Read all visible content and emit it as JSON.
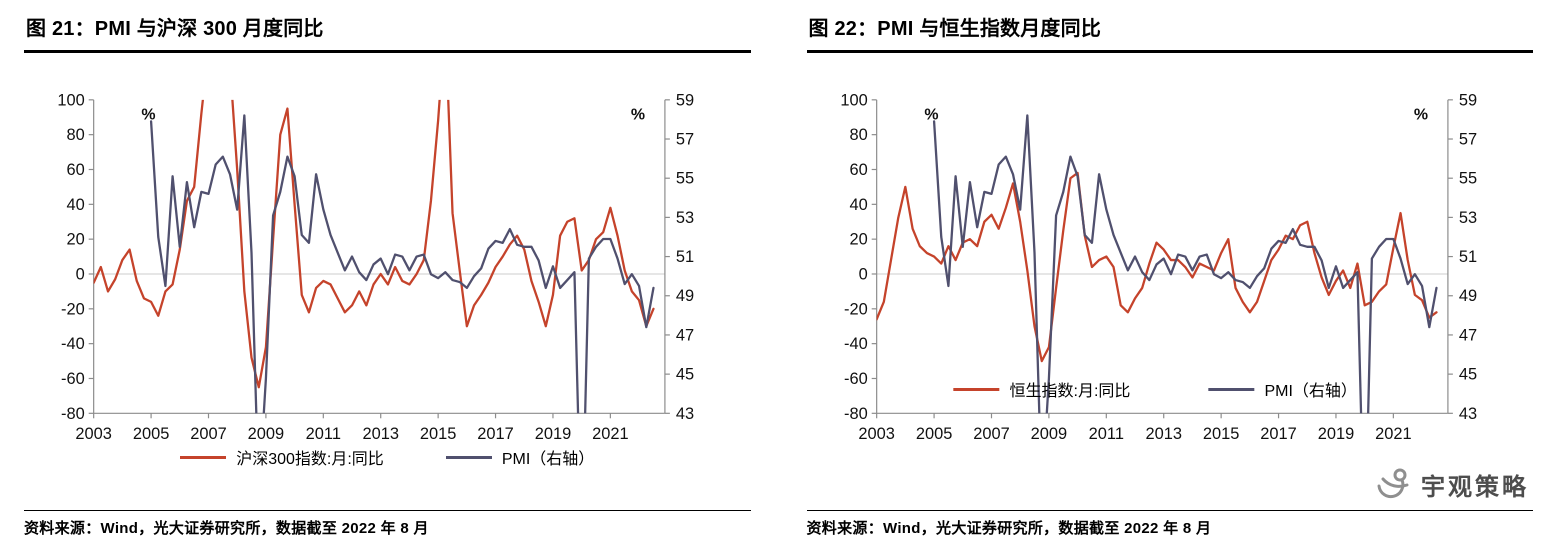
{
  "page": {
    "source_left": "资料来源：Wind，光大证券研究所，数据截至 2022 年 8 月",
    "source_right": "资料来源：Wind，光大证券研究所，数据截至 2022 年 8 月",
    "logo_text": "宇观策略"
  },
  "chart_data": [
    {
      "type": "line",
      "title": "图 21：PMI 与沪深 300 月度同比",
      "left_axis": {
        "unit": "%",
        "min": -80,
        "max": 100,
        "ticks": [
          100,
          80,
          60,
          40,
          20,
          0,
          -20,
          -40,
          -60,
          -80
        ]
      },
      "right_axis": {
        "unit": "%",
        "min": 43,
        "max": 59,
        "ticks": [
          59,
          57,
          55,
          53,
          51,
          49,
          47,
          45,
          43
        ]
      },
      "x_axis": {
        "min": 2003,
        "max": 2022.9,
        "ticks": [
          2003,
          2005,
          2007,
          2009,
          2011,
          2013,
          2015,
          2017,
          2019,
          2021
        ]
      },
      "x": [
        2003,
        2003.25,
        2003.5,
        2003.75,
        2004,
        2004.25,
        2004.5,
        2004.75,
        2005,
        2005.25,
        2005.5,
        2005.75,
        2006,
        2006.25,
        2006.5,
        2006.75,
        2007,
        2007.25,
        2007.5,
        2007.75,
        2008,
        2008.25,
        2008.5,
        2008.75,
        2009,
        2009.25,
        2009.5,
        2009.75,
        2010,
        2010.25,
        2010.5,
        2010.75,
        2011,
        2011.25,
        2011.5,
        2011.75,
        2012,
        2012.25,
        2012.5,
        2012.75,
        2013,
        2013.25,
        2013.5,
        2013.75,
        2014,
        2014.25,
        2014.5,
        2014.75,
        2015,
        2015.25,
        2015.5,
        2015.75,
        2016,
        2016.25,
        2016.5,
        2016.75,
        2017,
        2017.25,
        2017.5,
        2017.75,
        2018,
        2018.25,
        2018.5,
        2018.75,
        2019,
        2019.25,
        2019.5,
        2019.75,
        2020,
        2020.25,
        2020.5,
        2020.75,
        2021,
        2021.25,
        2021.5,
        2021.75,
        2022,
        2022.25,
        2022.5
      ],
      "series": [
        {
          "name": "沪深300指数:月:同比",
          "axis": "left",
          "color": "#c5432b",
          "values": [
            -5,
            4,
            -10,
            -3,
            8,
            14,
            -4,
            -14,
            -16,
            -24,
            -10,
            -6,
            14,
            42,
            50,
            92,
            130,
            155,
            160,
            120,
            60,
            -10,
            -48,
            -65,
            -42,
            20,
            80,
            95,
            40,
            -12,
            -22,
            -8,
            -4,
            -6,
            -14,
            -22,
            -18,
            -10,
            -18,
            -6,
            0,
            -6,
            4,
            -4,
            -6,
            0,
            8,
            42,
            88,
            145,
            35,
            2,
            -30,
            -18,
            -12,
            -5,
            4,
            10,
            17,
            22,
            14,
            -4,
            -16,
            -30,
            -12,
            22,
            30,
            32,
            2,
            8,
            20,
            24,
            38,
            22,
            2,
            -10,
            -15,
            -30,
            -20
          ]
        },
        {
          "name": "PMI（右轴）",
          "axis": "right",
          "color": "#50506e",
          "values": [
            null,
            null,
            null,
            null,
            null,
            null,
            null,
            null,
            57.9,
            52,
            49.5,
            55.1,
            51.5,
            54.8,
            52.5,
            54.3,
            54.2,
            55.7,
            56.1,
            55.2,
            53.4,
            58.2,
            51.2,
            38.8,
            44.8,
            53.1,
            54.3,
            56.1,
            55.1,
            52.1,
            51.7,
            55.2,
            53.4,
            52.1,
            51.2,
            50.3,
            51,
            50.2,
            49.8,
            50.6,
            50.9,
            50.1,
            51.1,
            51,
            50.3,
            51,
            51.1,
            50.1,
            49.9,
            50.2,
            49.8,
            49.7,
            49.4,
            50,
            50.4,
            51.4,
            51.8,
            51.7,
            52.4,
            51.6,
            51.5,
            51.5,
            50.8,
            49.4,
            50.5,
            49.4,
            49.8,
            50.2,
            35.7,
            50.9,
            51.5,
            51.9,
            51.9,
            50.9,
            49.6,
            50.1,
            49.5,
            47.4,
            49.4
          ]
        }
      ]
    },
    {
      "type": "line",
      "title": "图 22：PMI 与恒生指数月度同比",
      "left_axis": {
        "unit": "%",
        "min": -80,
        "max": 100,
        "ticks": [
          100,
          80,
          60,
          40,
          20,
          0,
          -20,
          -40,
          -60,
          -80
        ]
      },
      "right_axis": {
        "unit": "%",
        "min": 43,
        "max": 59,
        "ticks": [
          59,
          57,
          55,
          53,
          51,
          49,
          47,
          45,
          43
        ]
      },
      "x_axis": {
        "min": 2003,
        "max": 2022.9,
        "ticks": [
          2003,
          2005,
          2007,
          2009,
          2011,
          2013,
          2015,
          2017,
          2019,
          2021
        ]
      },
      "x": [
        2003,
        2003.25,
        2003.5,
        2003.75,
        2004,
        2004.25,
        2004.5,
        2004.75,
        2005,
        2005.25,
        2005.5,
        2005.75,
        2006,
        2006.25,
        2006.5,
        2006.75,
        2007,
        2007.25,
        2007.5,
        2007.75,
        2008,
        2008.25,
        2008.5,
        2008.75,
        2009,
        2009.25,
        2009.5,
        2009.75,
        2010,
        2010.25,
        2010.5,
        2010.75,
        2011,
        2011.25,
        2011.5,
        2011.75,
        2012,
        2012.25,
        2012.5,
        2012.75,
        2013,
        2013.25,
        2013.5,
        2013.75,
        2014,
        2014.25,
        2014.5,
        2014.75,
        2015,
        2015.25,
        2015.5,
        2015.75,
        2016,
        2016.25,
        2016.5,
        2016.75,
        2017,
        2017.25,
        2017.5,
        2017.75,
        2018,
        2018.25,
        2018.5,
        2018.75,
        2019,
        2019.25,
        2019.5,
        2019.75,
        2020,
        2020.25,
        2020.5,
        2020.75,
        2021,
        2021.25,
        2021.5,
        2021.75,
        2022,
        2022.25,
        2022.5
      ],
      "series": [
        {
          "name": "恒生指数:月:同比",
          "axis": "left",
          "color": "#c5432b",
          "values": [
            -26,
            -16,
            8,
            32,
            50,
            26,
            16,
            12,
            10,
            6,
            16,
            8,
            18,
            20,
            16,
            30,
            34,
            26,
            38,
            52,
            30,
            2,
            -30,
            -50,
            -42,
            -8,
            25,
            55,
            58,
            22,
            4,
            8,
            10,
            4,
            -18,
            -22,
            -14,
            -8,
            6,
            18,
            14,
            8,
            8,
            4,
            -2,
            6,
            4,
            2,
            12,
            20,
            -8,
            -16,
            -22,
            -16,
            -4,
            8,
            14,
            22,
            20,
            28,
            30,
            12,
            -2,
            -12,
            -4,
            2,
            -8,
            6,
            -18,
            -16,
            -10,
            -6,
            15,
            35,
            8,
            -12,
            -15,
            -25,
            -22
          ]
        },
        {
          "name": "PMI（右轴）",
          "axis": "right",
          "color": "#50506e",
          "values": [
            null,
            null,
            null,
            null,
            null,
            null,
            null,
            null,
            57.9,
            52,
            49.5,
            55.1,
            51.5,
            54.8,
            52.5,
            54.3,
            54.2,
            55.7,
            56.1,
            55.2,
            53.4,
            58.2,
            51.2,
            38.8,
            44.8,
            53.1,
            54.3,
            56.1,
            55.1,
            52.1,
            51.7,
            55.2,
            53.4,
            52.1,
            51.2,
            50.3,
            51,
            50.2,
            49.8,
            50.6,
            50.9,
            50.1,
            51.1,
            51,
            50.3,
            51,
            51.1,
            50.1,
            49.9,
            50.2,
            49.8,
            49.7,
            49.4,
            50,
            50.4,
            51.4,
            51.8,
            51.7,
            52.4,
            51.6,
            51.5,
            51.5,
            50.8,
            49.4,
            50.5,
            49.4,
            49.8,
            50.2,
            35.7,
            50.9,
            51.5,
            51.9,
            51.9,
            50.9,
            49.6,
            50.1,
            49.5,
            47.4,
            49.4
          ]
        }
      ]
    }
  ]
}
